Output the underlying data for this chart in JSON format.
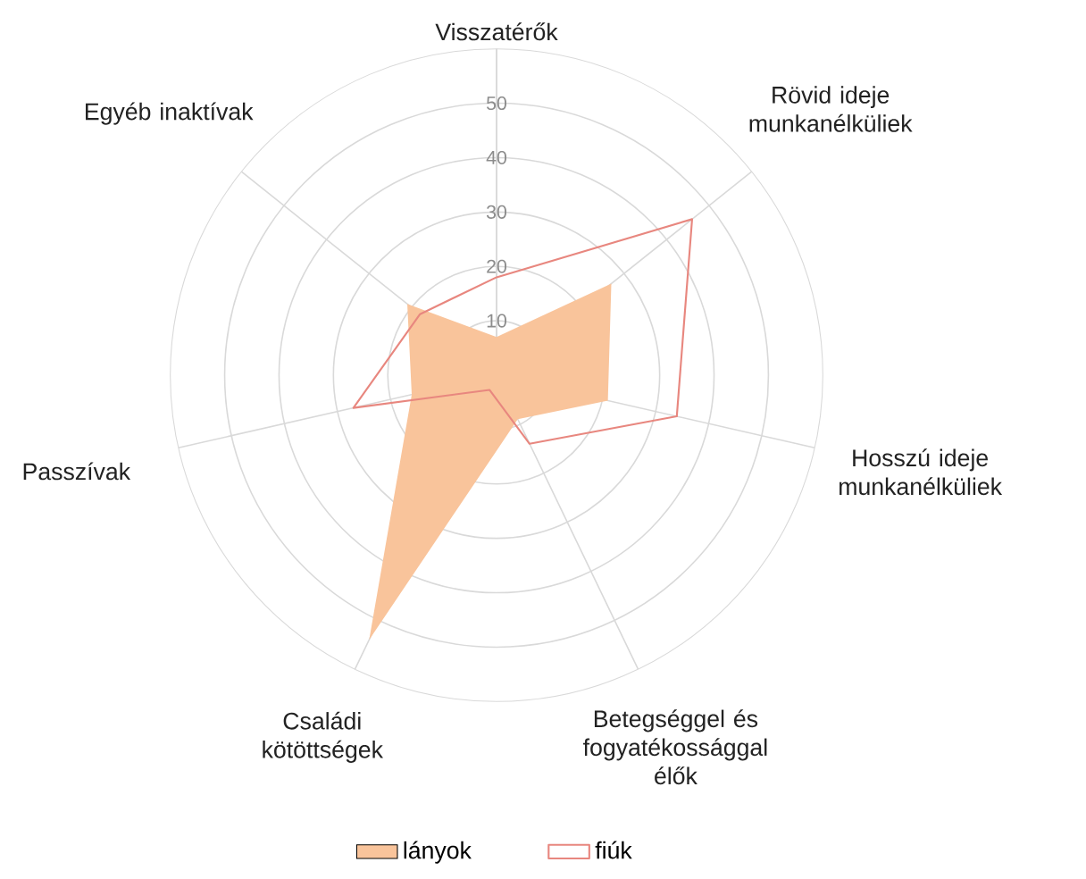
{
  "chart_data": {
    "type": "radar",
    "categories": [
      "Visszatérők",
      "Rövid ideje munkanélküliek",
      "Hosszú ideje munkanélküliek",
      "Betegséggel és fogyatékossággal élők",
      "Családi kötöttségek",
      "Passzívak",
      "Egyéb inaktívak"
    ],
    "series": [
      {
        "name": "lányok",
        "color": "#f9c49b",
        "type": "area",
        "values": [
          7,
          27,
          21,
          9,
          54,
          16,
          21
        ]
      },
      {
        "name": "fiúk",
        "color": "#e8877f",
        "values": [
          18,
          46,
          34,
          14,
          3,
          27,
          18
        ]
      }
    ],
    "ylim": [
      0,
      60
    ],
    "yticks": [
      10,
      20,
      30,
      40,
      50
    ],
    "grid": true,
    "legend": "bottom"
  }
}
